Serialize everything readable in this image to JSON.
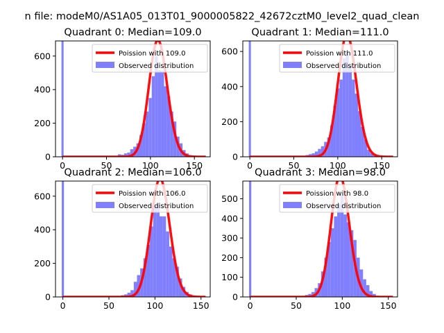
{
  "figure_title": "n file: modeM0/AS1A05_013T01_9000005822_42672cztM0_level2_quad_clean",
  "colors": {
    "hist": "#8080ff",
    "poisson": "#ff0000",
    "axis": "#000000"
  },
  "chart_data": [
    {
      "type": "bar",
      "title": "Quadrant 0: Median=109.0",
      "xlim": [
        -8,
        168
      ],
      "ylim": [
        0,
        690
      ],
      "xticks": [
        0,
        50,
        100,
        150
      ],
      "yticks": [
        0,
        200,
        400,
        600
      ],
      "legend": {
        "placement": "top-right",
        "entries": [
          "Poission with 109.0",
          "Observed distribution"
        ]
      },
      "poisson_mean": 109.0,
      "poisson_scale": 695,
      "bin_width": 3.5,
      "zero_bin": {
        "x": 0,
        "value": 690
      },
      "hist": {
        "x": [
          63,
          66.5,
          70,
          73.5,
          77,
          80.5,
          84,
          87.5,
          91,
          94.5,
          98,
          101.5,
          105,
          108.5,
          112,
          115.5,
          119,
          122.5,
          126,
          129.5,
          133,
          136.5,
          140,
          143.5,
          147,
          150.5,
          154,
          157.5
        ],
        "values": [
          15,
          12,
          20,
          25,
          45,
          60,
          80,
          130,
          200,
          270,
          350,
          480,
          600,
          515,
          510,
          420,
          360,
          270,
          210,
          120,
          80,
          40,
          20,
          10,
          5,
          3,
          2,
          1
        ]
      }
    },
    {
      "type": "bar",
      "title": "Quadrant 1: Median=111.0",
      "xlim": [
        -8,
        168
      ],
      "ylim": [
        0,
        660
      ],
      "xticks": [
        0,
        50,
        100,
        150
      ],
      "yticks": [
        0,
        200,
        400,
        600
      ],
      "legend": {
        "placement": "top-right",
        "entries": [
          "Poission with 111.0",
          "Observed distribution"
        ]
      },
      "poisson_mean": 111.0,
      "poisson_scale": 695,
      "bin_width": 3.5,
      "zero_bin": {
        "x": 0,
        "value": 660
      },
      "hist": {
        "x": [
          60,
          63.5,
          67,
          70.5,
          74,
          77.5,
          81,
          84.5,
          88,
          91.5,
          95,
          98.5,
          102,
          105.5,
          109,
          112.5,
          116,
          119.5,
          123,
          126.5,
          130,
          133.5,
          137,
          140.5,
          144,
          147.5,
          151
        ],
        "values": [
          5,
          10,
          15,
          20,
          30,
          45,
          60,
          85,
          110,
          180,
          290,
          390,
          440,
          560,
          590,
          520,
          440,
          360,
          260,
          170,
          100,
          40,
          20,
          10,
          5,
          2,
          1
        ]
      }
    },
    {
      "type": "bar",
      "title": "Quadrant 2: Median=106.0",
      "xlim": [
        -8,
        160
      ],
      "ylim": [
        0,
        690
      ],
      "xticks": [
        0,
        50,
        100,
        150
      ],
      "yticks": [
        0,
        200,
        400,
        600
      ],
      "legend": {
        "placement": "top-right",
        "entries": [
          "Poission with 106.0",
          "Observed distribution"
        ]
      },
      "poisson_mean": 106.0,
      "poisson_scale": 705,
      "bin_width": 3.5,
      "zero_bin": {
        "x": 0,
        "value": 690
      },
      "hist": {
        "x": [
          63,
          66.5,
          70,
          73.5,
          77,
          80.5,
          84,
          87.5,
          91,
          94.5,
          98,
          101.5,
          105,
          108.5,
          112,
          115.5,
          119,
          122.5,
          126,
          129.5,
          133,
          136.5,
          140,
          143.5,
          147
        ],
        "values": [
          10,
          15,
          25,
          40,
          90,
          130,
          170,
          230,
          310,
          420,
          540,
          560,
          480,
          480,
          390,
          300,
          230,
          180,
          110,
          60,
          30,
          15,
          5,
          2,
          1
        ]
      }
    },
    {
      "type": "bar",
      "title": "Quadrant 3: Median=98.0",
      "xlim": [
        -8,
        160
      ],
      "ylim": [
        0,
        590
      ],
      "xticks": [
        0,
        50,
        100,
        150
      ],
      "yticks": [
        0,
        100,
        200,
        300,
        400,
        500
      ],
      "legend": {
        "placement": "top-right",
        "entries": [
          "Poission with 98.0",
          "Observed distribution"
        ]
      },
      "poisson_mean": 98.0,
      "poisson_scale": 615,
      "bin_width": 3.5,
      "zero_bin": {
        "x": 0,
        "value": 590
      },
      "hist": {
        "x": [
          56,
          59.5,
          63,
          66.5,
          70,
          73.5,
          77,
          80.5,
          84,
          87.5,
          91,
          94.5,
          98,
          101.5,
          105,
          108.5,
          112,
          115.5,
          119,
          122.5,
          126,
          129.5,
          133,
          136.5,
          140,
          143.5
        ],
        "values": [
          5,
          10,
          15,
          25,
          45,
          70,
          130,
          200,
          280,
          350,
          410,
          470,
          520,
          420,
          380,
          340,
          290,
          200,
          140,
          90,
          60,
          30,
          15,
          5,
          2,
          1
        ]
      }
    }
  ]
}
